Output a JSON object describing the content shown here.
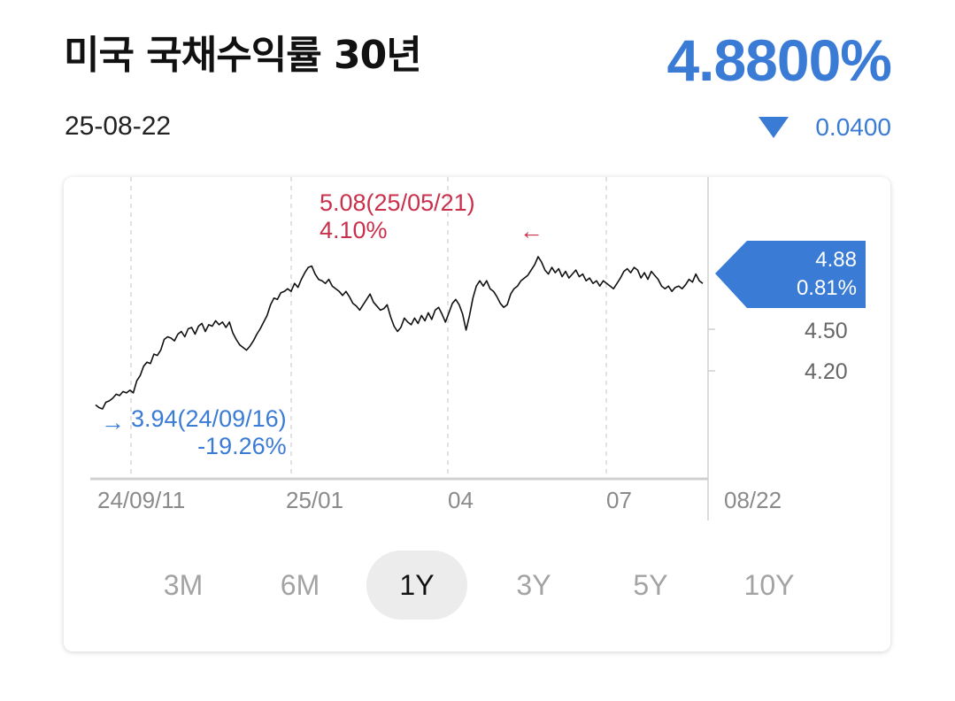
{
  "header": {
    "title": "미국 국채수익률 30년",
    "price": "4.8800%",
    "date": "25-08-22",
    "change": "0.0400",
    "change_icon": "down-triangle-icon",
    "accent_color": "#3a7bd5"
  },
  "chart_data": {
    "type": "line",
    "x_tick_labels": [
      "24/09/11",
      "25/01",
      "04",
      "07",
      "08/22"
    ],
    "y_tick_labels": [
      "4.50",
      "4.20"
    ],
    "current": {
      "value": "4.88",
      "pct": "0.81%"
    },
    "high": {
      "label": "5.08(25/05/21)",
      "pct": "4.10%",
      "color": "#c9304b"
    },
    "low": {
      "label": "3.94(24/09/16)",
      "pct": "-19.26%",
      "color": "#3a7bd5"
    },
    "series": [
      {
        "values": [
          3.97,
          3.95,
          3.94,
          3.99,
          4.0,
          4.02,
          4.05,
          4.04,
          4.07,
          4.06,
          4.08,
          4.06,
          4.15,
          4.19,
          4.26,
          4.29,
          4.28,
          4.35,
          4.34,
          4.38,
          4.46,
          4.48,
          4.47,
          4.45,
          4.5,
          4.52,
          4.48,
          4.54,
          4.55,
          4.5,
          4.56,
          4.58,
          4.52,
          4.57,
          4.56,
          4.6,
          4.57,
          4.59,
          4.55,
          4.59,
          4.51,
          4.46,
          4.42,
          4.4,
          4.38,
          4.41,
          4.45,
          4.5,
          4.54,
          4.59,
          4.64,
          4.72,
          4.77,
          4.76,
          4.81,
          4.82,
          4.84,
          4.82,
          4.88,
          4.85,
          4.91,
          4.96,
          5.0,
          5.01,
          4.95,
          4.91,
          4.9,
          4.88,
          4.91,
          4.86,
          4.84,
          4.82,
          4.79,
          4.82,
          4.78,
          4.73,
          4.71,
          4.68,
          4.72,
          4.76,
          4.8,
          4.74,
          4.71,
          4.68,
          4.69,
          4.72,
          4.63,
          4.56,
          4.52,
          4.55,
          4.62,
          4.59,
          4.57,
          4.62,
          4.58,
          4.64,
          4.6,
          4.66,
          4.61,
          4.68,
          4.7,
          4.65,
          4.59,
          4.66,
          4.73,
          4.76,
          4.72,
          4.65,
          4.53,
          4.64,
          4.77,
          4.86,
          4.9,
          4.86,
          4.9,
          4.84,
          4.82,
          4.78,
          4.73,
          4.7,
          4.72,
          4.8,
          4.84,
          4.86,
          4.9,
          4.92,
          4.94,
          4.98,
          5.02,
          5.08,
          5.04,
          4.98,
          4.95,
          5.0,
          4.96,
          4.99,
          4.93,
          4.97,
          4.92,
          4.95,
          4.98,
          4.93,
          4.95,
          4.9,
          4.92,
          4.88,
          4.9,
          4.86,
          4.9,
          4.88,
          4.86,
          4.84,
          4.88,
          4.92,
          4.97,
          4.99,
          4.96,
          5.0,
          4.98,
          4.92,
          4.96,
          4.91,
          4.97,
          4.94,
          4.91,
          4.86,
          4.84,
          4.86,
          4.82,
          4.85,
          4.86,
          4.84,
          4.87,
          4.91,
          4.89,
          4.95,
          4.9,
          4.88
        ]
      }
    ]
  },
  "periods": [
    "3M",
    "6M",
    "1Y",
    "3Y",
    "5Y",
    "10Y"
  ],
  "active_period": "1Y"
}
